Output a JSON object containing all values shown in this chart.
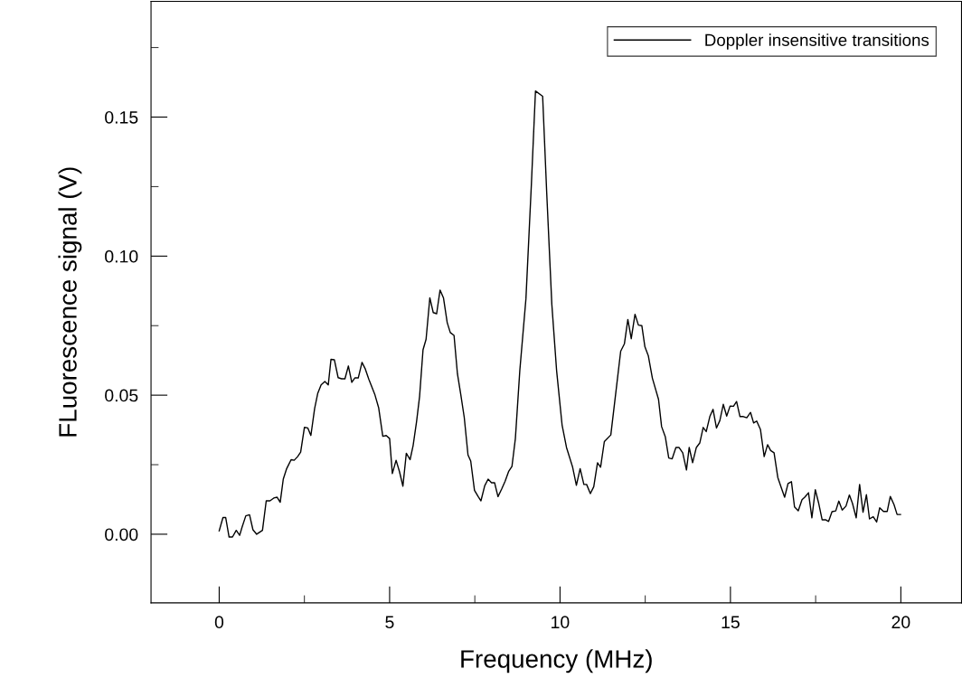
{
  "chart_data": {
    "type": "line",
    "xlabel": "Frequency (MHz)",
    "ylabel": "FLuorescence signal (V)",
    "legend": "top right",
    "marker": "none",
    "line_style": "solid",
    "xlim": [
      -2,
      21.78
    ],
    "ylim": [
      -0.0247,
      0.1916
    ],
    "xticks": [
      0,
      {
        "value": 2.5,
        "label": null
      },
      5,
      {
        "value": 7.5,
        "label": null
      },
      10,
      {
        "value": 12.5,
        "label": null
      },
      15,
      {
        "value": 17.5,
        "label": null
      },
      20
    ],
    "yticks": [
      {
        "value": 0,
        "label": "0.00"
      },
      {
        "value": 0.025,
        "label": null
      },
      {
        "value": 0.05,
        "label": "0.05"
      },
      {
        "value": 0.075,
        "label": null
      },
      {
        "value": 0.1,
        "label": "0.10"
      },
      {
        "value": 0.125,
        "label": null
      },
      {
        "value": 0.15,
        "label": "0.15"
      },
      {
        "value": 0.175,
        "label": null
      }
    ],
    "series": [
      {
        "name": "Doppler insensitive transitions",
        "color": "#000000",
        "x": [
          0.0,
          0.11,
          0.19,
          0.29,
          0.39,
          0.5,
          0.6,
          0.67,
          0.78,
          0.89,
          0.99,
          1.1,
          1.27,
          1.38,
          1.49,
          1.6,
          1.7,
          1.79,
          1.88,
          1.98,
          2.11,
          2.2,
          2.3,
          2.39,
          2.5,
          2.6,
          2.69,
          2.8,
          2.89,
          2.99,
          3.1,
          3.2,
          3.28,
          3.38,
          3.49,
          3.59,
          3.69,
          3.79,
          3.89,
          3.98,
          4.08,
          4.19,
          4.28,
          4.39,
          4.57,
          4.68,
          4.8,
          4.9,
          5.0,
          5.08,
          5.19,
          5.29,
          5.39,
          5.49,
          5.6,
          5.69,
          5.79,
          5.88,
          5.98,
          6.07,
          6.18,
          6.28,
          6.38,
          6.48,
          6.58,
          6.69,
          6.78,
          6.89,
          6.99,
          7.09,
          7.19,
          7.3,
          7.38,
          7.49,
          7.6,
          7.68,
          7.79,
          7.89,
          7.99,
          8.08,
          8.18,
          8.29,
          8.39,
          8.49,
          8.59,
          8.69,
          8.82,
          9.0,
          9.16,
          9.28,
          9.49,
          9.61,
          9.76,
          9.9,
          10.06,
          10.19,
          10.37,
          10.48,
          10.59,
          10.7,
          10.78,
          10.89,
          10.99,
          11.1,
          11.19,
          11.3,
          11.49,
          11.65,
          11.78,
          11.89,
          11.99,
          12.09,
          12.2,
          12.3,
          12.4,
          12.49,
          12.59,
          12.71,
          12.89,
          12.98,
          13.09,
          13.19,
          13.29,
          13.4,
          13.49,
          13.6,
          13.71,
          13.79,
          13.89,
          14.0,
          14.1,
          14.2,
          14.29,
          14.4,
          14.49,
          14.59,
          14.69,
          14.79,
          14.89,
          14.99,
          15.09,
          15.18,
          15.28,
          15.38,
          15.48,
          15.59,
          15.68,
          15.77,
          15.88,
          15.99,
          16.09,
          16.18,
          16.28,
          16.39,
          16.49,
          16.59,
          16.69,
          16.79,
          16.88,
          16.99,
          17.1,
          17.18,
          17.29,
          17.39,
          17.49,
          17.59,
          17.69,
          17.79,
          17.88,
          17.98,
          18.09,
          18.18,
          18.28,
          18.39,
          18.49,
          18.58,
          18.69,
          18.79,
          18.89,
          18.99,
          19.08,
          19.19,
          19.29,
          19.38,
          19.49,
          19.6,
          19.69,
          19.8,
          19.89,
          19.99
        ],
        "values": [
          0.0012,
          0.006,
          0.006,
          -0.001,
          -0.001,
          0.0014,
          -0.0004,
          0.0025,
          0.0066,
          0.007,
          0.0016,
          0.0,
          0.0014,
          0.012,
          0.012,
          0.013,
          0.0133,
          0.0115,
          0.0198,
          0.0236,
          0.0268,
          0.0266,
          0.0279,
          0.0295,
          0.0384,
          0.0382,
          0.0355,
          0.0452,
          0.0506,
          0.0537,
          0.0549,
          0.0537,
          0.0629,
          0.0627,
          0.0563,
          0.0559,
          0.0559,
          0.0605,
          0.0546,
          0.0562,
          0.0562,
          0.0618,
          0.0596,
          0.0557,
          0.0501,
          0.0454,
          0.0352,
          0.0355,
          0.0344,
          0.0218,
          0.0266,
          0.0225,
          0.0173,
          0.0291,
          0.0268,
          0.0319,
          0.0404,
          0.0496,
          0.0663,
          0.0701,
          0.085,
          0.0797,
          0.0793,
          0.0878,
          0.085,
          0.0761,
          0.0725,
          0.0715,
          0.0577,
          0.0501,
          0.042,
          0.0285,
          0.0263,
          0.0158,
          0.0135,
          0.012,
          0.0174,
          0.0198,
          0.0185,
          0.0185,
          0.0135,
          0.0163,
          0.0191,
          0.0225,
          0.0244,
          0.0344,
          0.0588,
          0.0847,
          0.1259,
          0.1594,
          0.1575,
          0.1226,
          0.0826,
          0.0588,
          0.0393,
          0.0312,
          0.0241,
          0.0176,
          0.0236,
          0.0179,
          0.0179,
          0.0146,
          0.0171,
          0.0257,
          0.0241,
          0.0333,
          0.0357,
          0.0523,
          0.0658,
          0.0685,
          0.0772,
          0.0703,
          0.0791,
          0.0752,
          0.075,
          0.0674,
          0.0642,
          0.0561,
          0.0485,
          0.0387,
          0.035,
          0.0274,
          0.0271,
          0.0312,
          0.0312,
          0.0293,
          0.0231,
          0.0312,
          0.0257,
          0.0312,
          0.0328,
          0.0384,
          0.0369,
          0.0425,
          0.0449,
          0.0382,
          0.0409,
          0.0467,
          0.0425,
          0.0461,
          0.046,
          0.0477,
          0.0423,
          0.0423,
          0.0419,
          0.0438,
          0.04,
          0.0407,
          0.0377,
          0.0279,
          0.0322,
          0.0301,
          0.0293,
          0.0204,
          0.0168,
          0.0133,
          0.0182,
          0.0189,
          0.0098,
          0.0084,
          0.0124,
          0.0133,
          0.0149,
          0.0059,
          0.016,
          0.0111,
          0.0052,
          0.0052,
          0.0046,
          0.0081,
          0.0084,
          0.0119,
          0.0087,
          0.0101,
          0.0141,
          0.0111,
          0.0059,
          0.0179,
          0.0079,
          0.0142,
          0.0055,
          0.0063,
          0.0044,
          0.0095,
          0.0082,
          0.0082,
          0.0136,
          0.0106,
          0.0071,
          0.0071
        ]
      }
    ]
  }
}
